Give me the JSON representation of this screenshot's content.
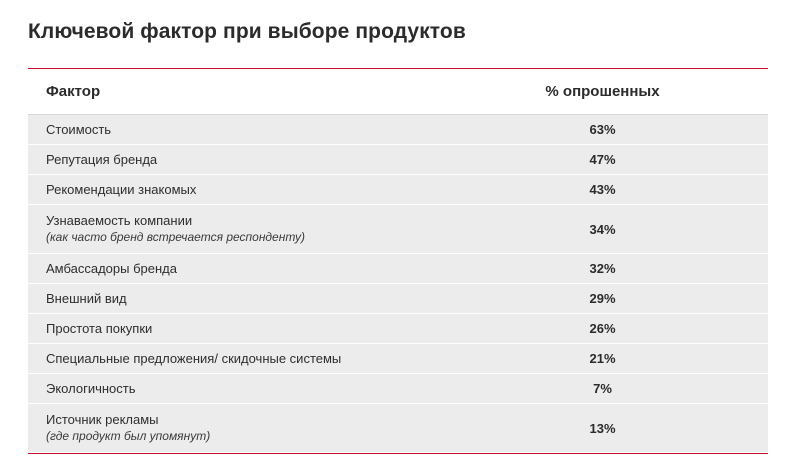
{
  "title": "Ключевой фактор при выборе продуктов",
  "table": {
    "headers": {
      "factor": "Фактор",
      "percent": "% опрошенных"
    },
    "rows": [
      {
        "label": "Стоимость",
        "sub": "",
        "value": "63%"
      },
      {
        "label": "Репутация бренда",
        "sub": "",
        "value": "47%"
      },
      {
        "label": "Рекомендации знакомых",
        "sub": "",
        "value": "43%"
      },
      {
        "label": "Узнаваемость компании",
        "sub": "(как часто бренд встречается респонденту)",
        "value": "34%"
      },
      {
        "label": "Амбассадоры бренда",
        "sub": "",
        "value": "32%"
      },
      {
        "label": "Внешний вид",
        "sub": "",
        "value": "29%"
      },
      {
        "label": "Простота покупки",
        "sub": "",
        "value": "26%"
      },
      {
        "label": "Специальные предложения/ скидочные системы",
        "sub": "",
        "value": "21%"
      },
      {
        "label": "Экологичность",
        "sub": "",
        "value": "7%"
      },
      {
        "label": "Источник рекламы",
        "sub": "(где продукт был упомянут)",
        "value": "13%"
      }
    ]
  },
  "colors": {
    "accent": "#c8102e",
    "row_bg": "#ececec"
  }
}
